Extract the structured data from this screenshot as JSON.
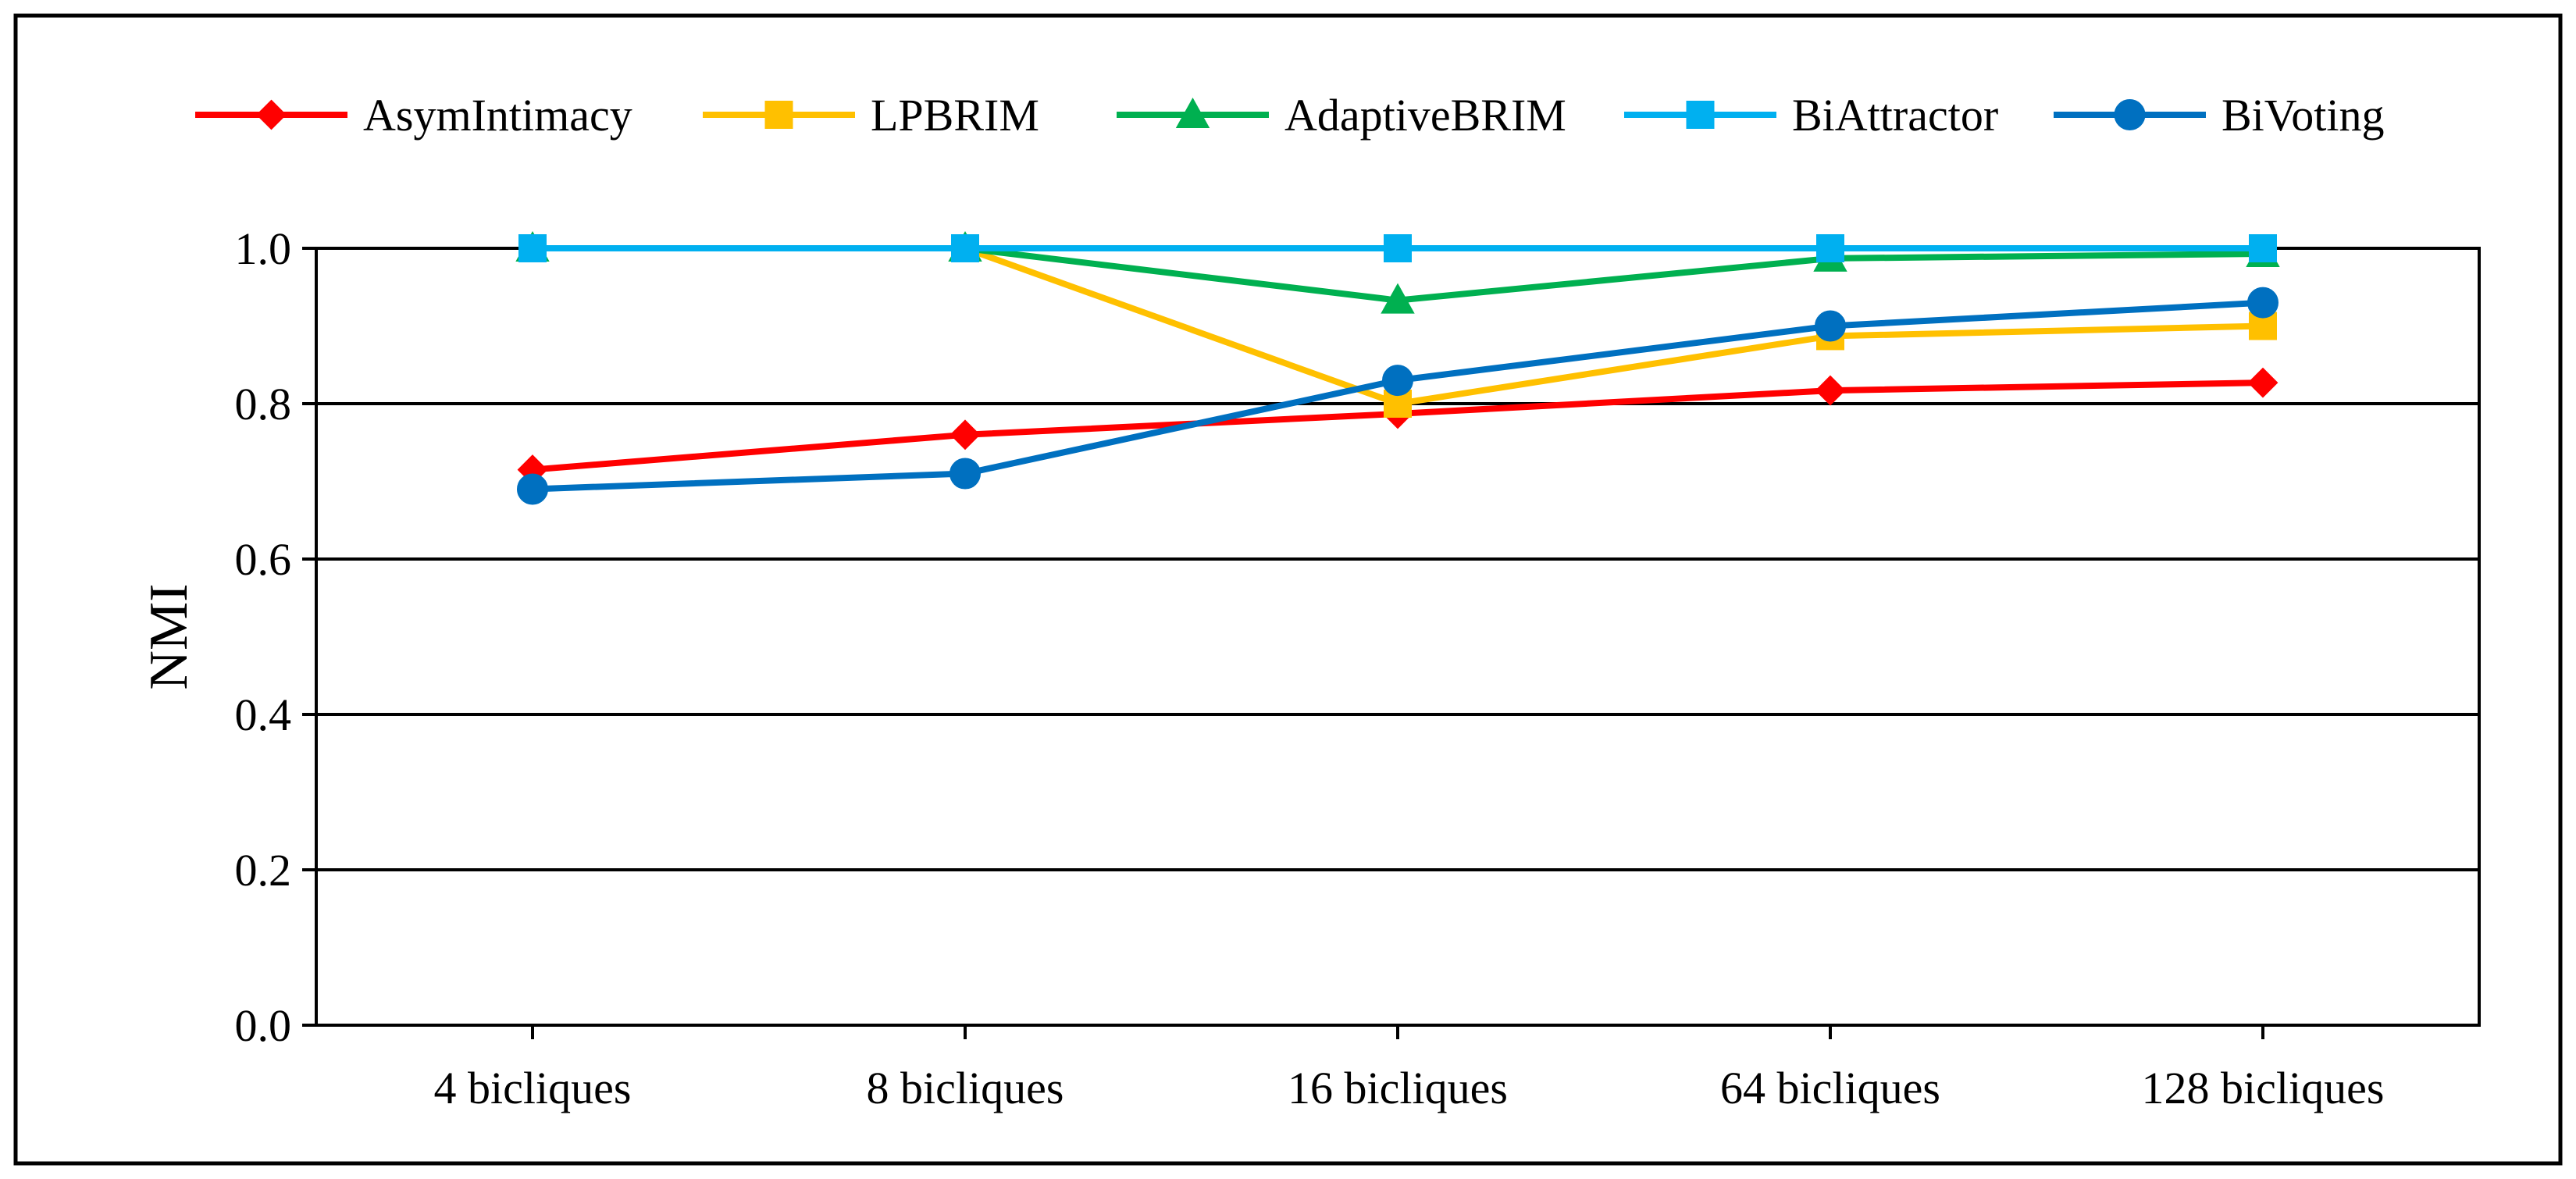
{
  "chart_data": {
    "type": "line",
    "title": "",
    "xlabel": "",
    "ylabel": "NMI",
    "categories": [
      "4 bicliques",
      "8 bicliques",
      "16 bicliques",
      "64 bicliques",
      "128 bicliques"
    ],
    "ylim": [
      0,
      1.0
    ],
    "yticks": [
      "0.0",
      "0.2",
      "0.4",
      "0.6",
      "0.8",
      "1.0"
    ],
    "grid": true,
    "legend_position": "top",
    "series": [
      {
        "name": "AsymIntimacy",
        "color": "#ff0000",
        "marker": "diamond",
        "values": [
          0.715,
          0.76,
          0.787,
          0.817,
          0.827
        ]
      },
      {
        "name": "LPBRIM",
        "color": "#ffc000",
        "marker": "square",
        "values": [
          1.0,
          1.0,
          0.8,
          0.887,
          0.9
        ]
      },
      {
        "name": "AdaptiveBRIM",
        "color": "#00b050",
        "marker": "triangle",
        "values": [
          1.0,
          1.0,
          0.933,
          0.987,
          0.993
        ]
      },
      {
        "name": "BiAttractor",
        "color": "#00b0f0",
        "marker": "square",
        "values": [
          1.0,
          1.0,
          1.0,
          1.0,
          1.0
        ]
      },
      {
        "name": "BiVoting",
        "color": "#0070c0",
        "marker": "circle",
        "values": [
          0.69,
          0.71,
          0.83,
          0.9,
          0.93
        ]
      }
    ]
  }
}
